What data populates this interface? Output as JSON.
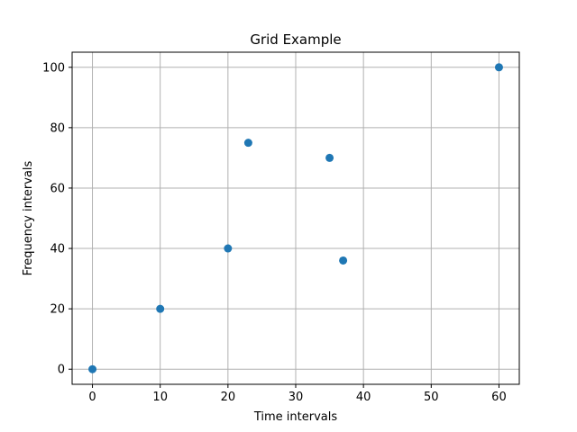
{
  "chart_data": {
    "type": "scatter",
    "title": "Grid Example",
    "xlabel": "Time intervals",
    "ylabel": "Frequency intervals",
    "xlim": [
      -3.0,
      63.0
    ],
    "ylim": [
      -5.0,
      105.0
    ],
    "xticks": [
      0,
      10,
      20,
      30,
      40,
      50,
      60
    ],
    "yticks": [
      0,
      20,
      40,
      60,
      80,
      100
    ],
    "grid": true,
    "series": [
      {
        "x": [
          0,
          10,
          20,
          23,
          35,
          37,
          60
        ],
        "y": [
          0,
          20,
          40,
          75,
          70,
          36,
          100
        ]
      }
    ],
    "colors": {
      "point": "#1f77b4",
      "grid": "#b0b0b0",
      "axes": "#000000"
    }
  }
}
